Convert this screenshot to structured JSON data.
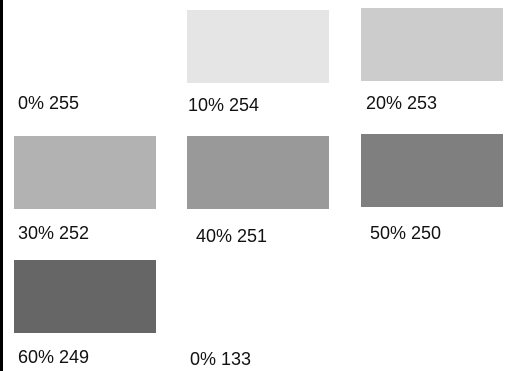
{
  "swatches": [
    {
      "label": "0% 255",
      "color": "#ffffff"
    },
    {
      "label": "10% 254",
      "color": "#e5e5e5"
    },
    {
      "label": "20% 253",
      "color": "#cccccc"
    },
    {
      "label": "30% 252",
      "color": "#b2b2b2"
    },
    {
      "label": "40% 251",
      "color": "#999999"
    },
    {
      "label": "50% 250",
      "color": "#7f7f7f"
    },
    {
      "label": "60% 249",
      "color": "#666666"
    },
    {
      "label": "0% 133",
      "color": "#ffffff"
    }
  ]
}
